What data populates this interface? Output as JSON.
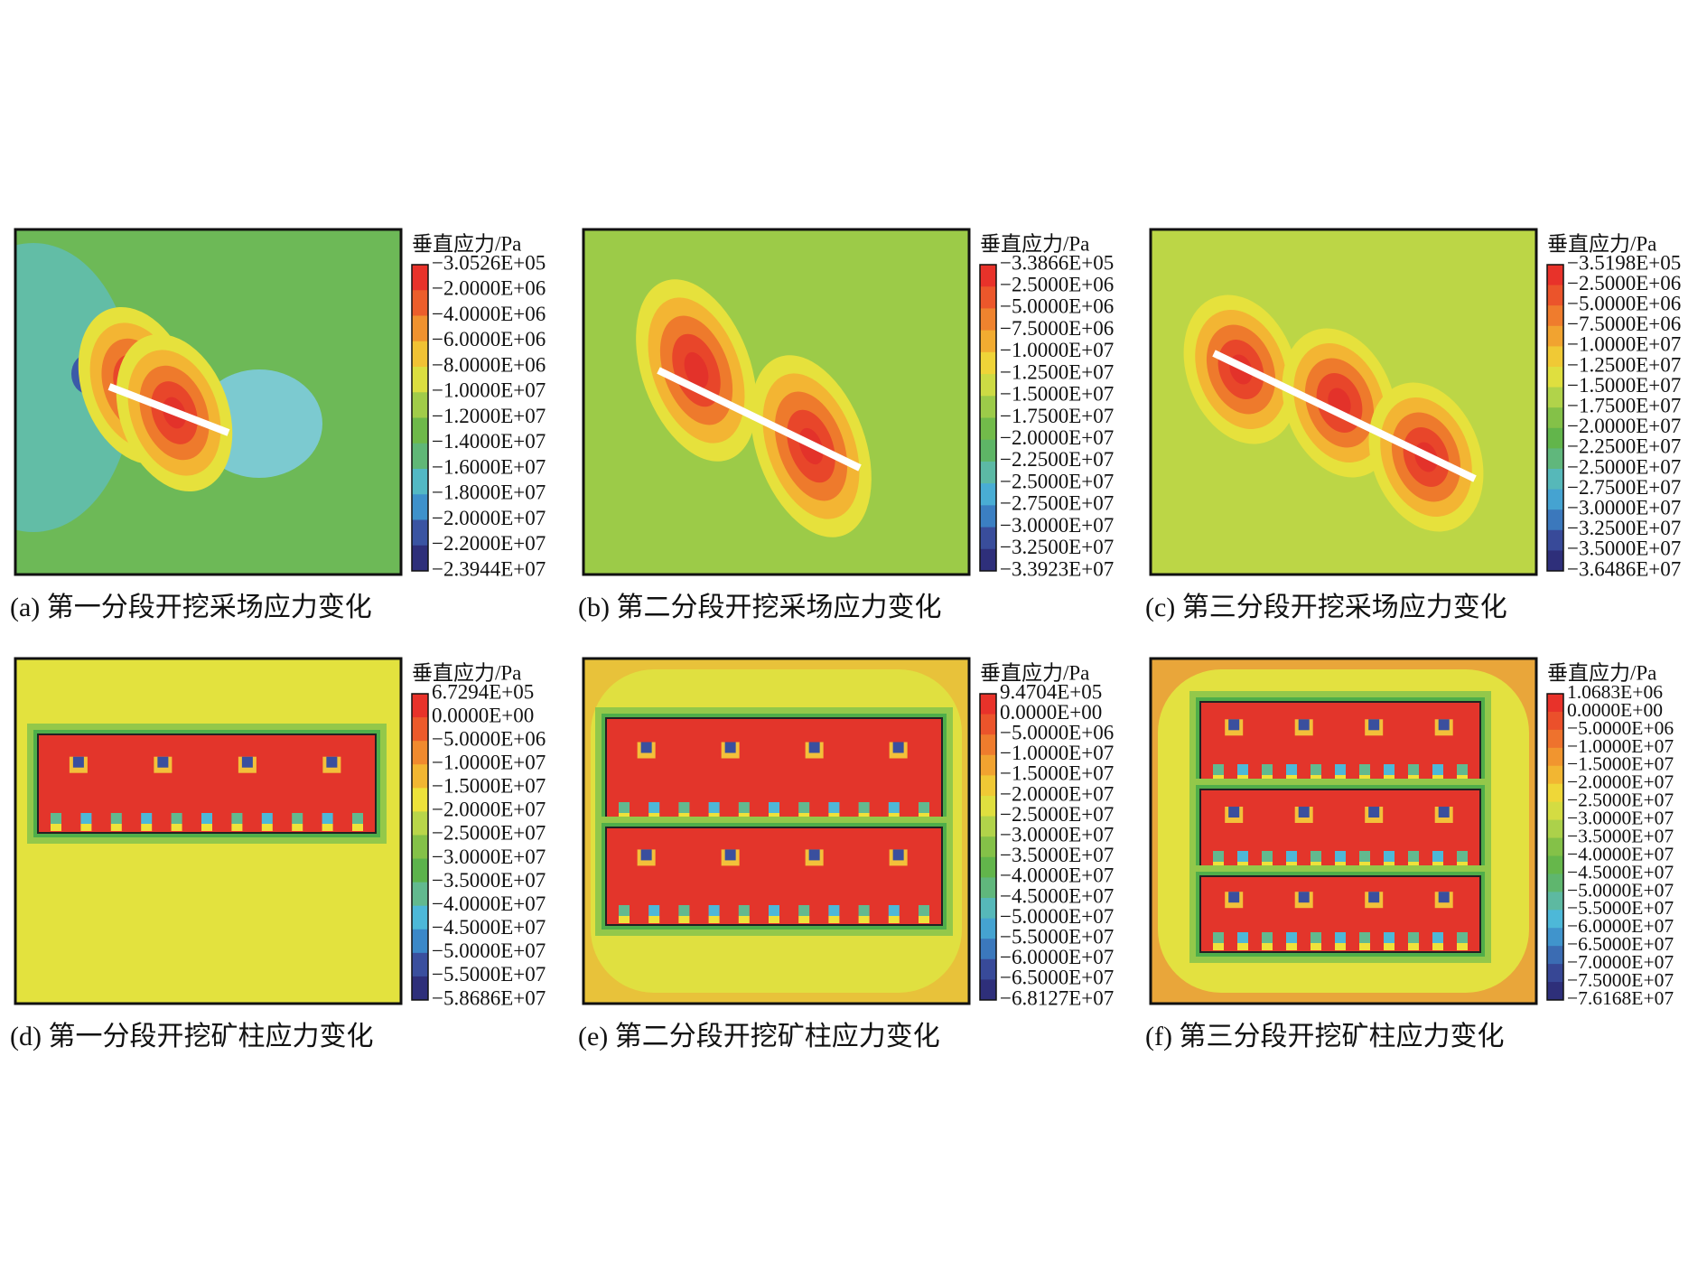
{
  "panels": [
    {
      "legend_title": "垂直应力/Pa",
      "caption": "(a) 第一分段开挖采场应力变化",
      "legend_labels": [
        "−3.0526E+05",
        "−2.0000E+06",
        "−4.0000E+06",
        "−6.0000E+06",
        "−8.0000E+06",
        "−1.0000E+07",
        "−1.2000E+07",
        "−1.4000E+07",
        "−1.6000E+07",
        "−1.8000E+07",
        "−2.0000E+07",
        "−2.2000E+07",
        "−2.3944E+07"
      ]
    },
    {
      "legend_title": "垂直应力/Pa",
      "caption": "(b) 第二分段开挖采场应力变化",
      "legend_labels": [
        "−3.3866E+05",
        "−2.5000E+06",
        "−5.0000E+06",
        "−7.5000E+06",
        "−1.0000E+07",
        "−1.2500E+07",
        "−1.5000E+07",
        "−1.7500E+07",
        "−2.0000E+07",
        "−2.2500E+07",
        "−2.5000E+07",
        "−2.7500E+07",
        "−3.0000E+07",
        "−3.2500E+07",
        "−3.3923E+07"
      ]
    },
    {
      "legend_title": "垂直应力/Pa",
      "caption": "(c) 第三分段开挖采场应力变化",
      "legend_labels": [
        "−3.5198E+05",
        "−2.5000E+06",
        "−5.0000E+06",
        "−7.5000E+06",
        "−1.0000E+07",
        "−1.2500E+07",
        "−1.5000E+07",
        "−1.7500E+07",
        "−2.0000E+07",
        "−2.2500E+07",
        "−2.5000E+07",
        "−2.7500E+07",
        "−3.0000E+07",
        "−3.2500E+07",
        "−3.5000E+07",
        "−3.6486E+07"
      ]
    },
    {
      "legend_title": "垂直应力/Pa",
      "caption": "(d) 第一分段开挖矿柱应力变化",
      "legend_labels": [
        "6.7294E+05",
        "0.0000E+00",
        "−5.0000E+06",
        "−1.0000E+07",
        "−1.5000E+07",
        "−2.0000E+07",
        "−2.5000E+07",
        "−3.0000E+07",
        "−3.5000E+07",
        "−4.0000E+07",
        "−4.5000E+07",
        "−5.0000E+07",
        "−5.5000E+07",
        "−5.8686E+07"
      ]
    },
    {
      "legend_title": "垂直应力/Pa",
      "caption": "(e) 第二分段开挖矿柱应力变化",
      "legend_labels": [
        "9.4704E+05",
        "0.0000E+00",
        "−5.0000E+06",
        "−1.0000E+07",
        "−1.5000E+07",
        "−2.0000E+07",
        "−2.5000E+07",
        "−3.0000E+07",
        "−3.5000E+07",
        "−4.0000E+07",
        "−4.5000E+07",
        "−5.0000E+07",
        "−5.5000E+07",
        "−6.0000E+07",
        "−6.5000E+07",
        "−6.8127E+07"
      ]
    },
    {
      "legend_title": "垂直应力/Pa",
      "caption": "(f) 第三分段开挖矿柱应力变化",
      "legend_labels": [
        "1.0683E+06",
        "0.0000E+00",
        "−5.0000E+06",
        "−1.0000E+07",
        "−1.5000E+07",
        "−2.0000E+07",
        "−2.5000E+07",
        "−3.0000E+07",
        "−3.5000E+07",
        "−4.0000E+07",
        "−4.5000E+07",
        "−5.0000E+07",
        "−5.5000E+07",
        "−6.0000E+07",
        "−6.5000E+07",
        "−7.0000E+07",
        "−7.5000E+07",
        "−7.6168E+07"
      ]
    }
  ]
}
